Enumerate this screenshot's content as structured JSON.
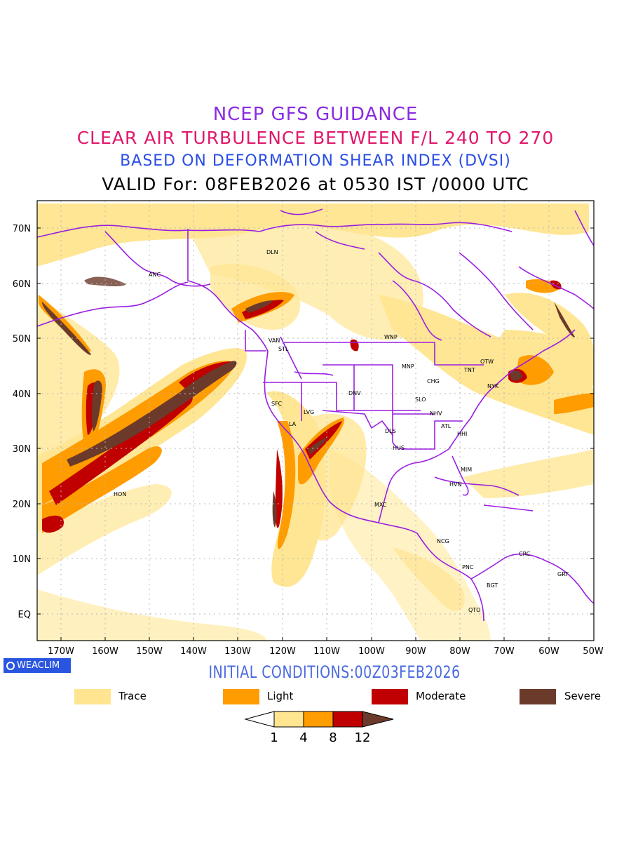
{
  "titles": {
    "line1": "NCEP GFS GUIDANCE",
    "line2": "CLEAR AIR TURBULENCE BETWEEN F/L 240 TO 270",
    "line3": "BASED ON DEFORMATION SHEAR INDEX (DVSI)",
    "line4": "VALID For: 08FEB2026 at 0530 IST /0000 UTC"
  },
  "initial_conditions": "INITIAL CONDITIONS:00Z03FEB2026",
  "badge": "WEACLIM",
  "axes": {
    "lat_labels": [
      "70N",
      "60N",
      "50N",
      "40N",
      "30N",
      "20N",
      "10N",
      "EQ"
    ],
    "lon_labels": [
      "170W",
      "160W",
      "150W",
      "140W",
      "130W",
      "120W",
      "110W",
      "100W",
      "90W",
      "80W",
      "70W",
      "60W",
      "50W"
    ]
  },
  "stations": [
    "ANC",
    "DLN",
    "VAN",
    "STL",
    "WNP",
    "MNP",
    "TNT",
    "OTW",
    "CHG",
    "NYK",
    "DNV",
    "SFC",
    "LVG",
    "SLO",
    "NHV",
    "LA",
    "ATL",
    "DLS",
    "HHI",
    "HUS",
    "MIM",
    "HVN",
    "HON",
    "MXC",
    "NCG",
    "CRC",
    "PNC",
    "GRT",
    "BGT",
    "QTO"
  ],
  "legend": {
    "items": [
      {
        "label": "Trace",
        "color": "#ffe58f"
      },
      {
        "label": "Light",
        "color": "#ff9c00"
      },
      {
        "label": "Moderate",
        "color": "#c00000"
      },
      {
        "label": "Severe",
        "color": "#6b3a2a"
      }
    ],
    "scale_ticks": [
      "1",
      "4",
      "8",
      "12"
    ]
  },
  "colors": {
    "coastline": "#9b1fe0",
    "trace": "#ffe58f",
    "light": "#ff9c00",
    "moderate": "#c00000",
    "severe": "#6b3a2a",
    "grid": "#b8b8b8"
  }
}
